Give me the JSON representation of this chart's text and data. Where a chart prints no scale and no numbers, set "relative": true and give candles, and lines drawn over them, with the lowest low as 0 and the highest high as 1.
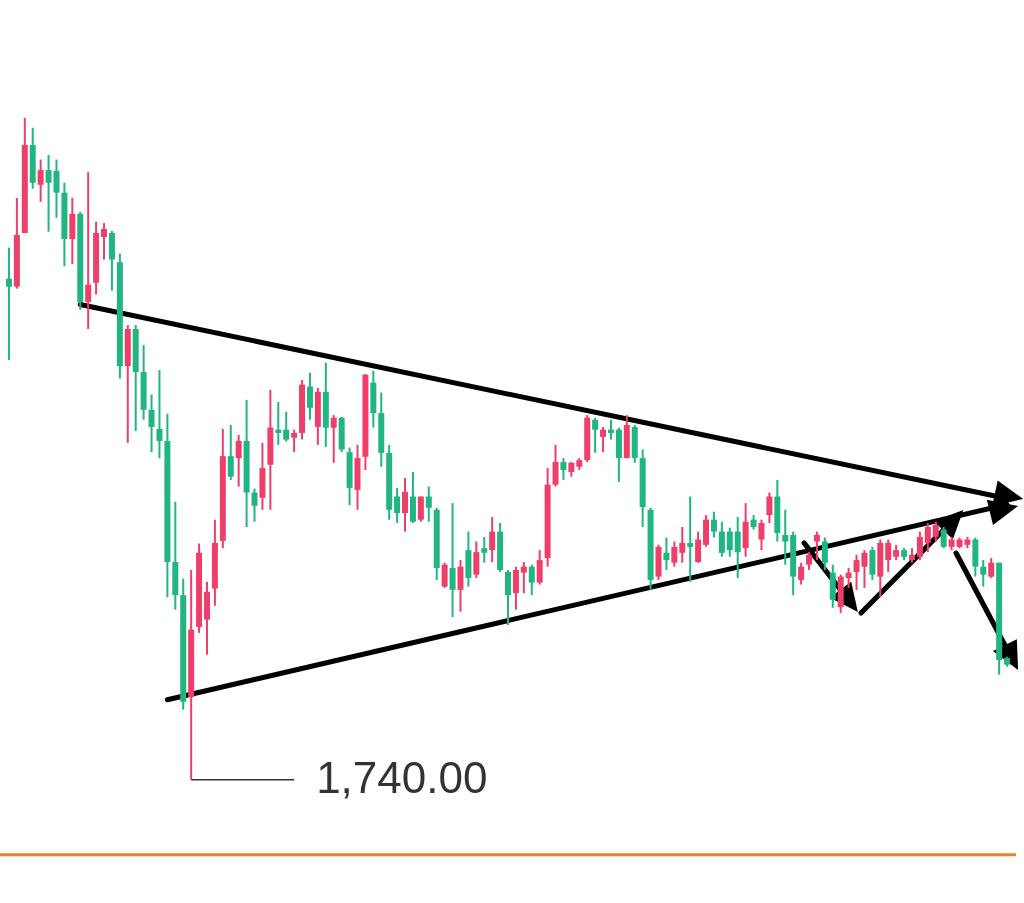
{
  "chart_data": {
    "type": "candlestick",
    "relative": true,
    "categories": [
      null,
      null,
      null,
      null,
      null,
      null,
      null,
      null,
      null,
      null,
      null,
      null,
      null,
      null,
      null,
      null,
      null,
      null,
      null,
      null,
      null,
      null,
      null,
      null,
      null,
      null,
      null,
      null,
      null,
      null,
      null,
      null,
      null,
      null,
      null,
      null,
      null,
      null,
      null,
      null,
      null,
      null,
      null,
      null,
      null,
      null,
      null,
      null,
      null,
      null,
      null,
      null,
      null,
      null,
      null,
      null,
      null,
      null,
      null,
      null,
      null,
      null,
      null,
      null,
      null,
      null,
      null,
      null,
      null,
      null,
      null,
      null,
      null,
      null,
      null,
      null,
      null,
      null,
      null,
      null,
      null,
      null,
      null,
      null,
      null,
      null,
      null,
      null,
      null,
      null,
      null,
      null,
      null,
      null,
      null,
      null,
      null,
      null,
      null,
      null,
      null,
      null,
      null,
      null,
      null,
      null,
      null,
      null,
      null,
      null,
      null,
      null,
      null,
      null,
      null,
      null,
      null,
      null,
      null,
      null,
      null,
      null,
      null,
      null,
      null,
      null,
      null
    ],
    "ohlc": [
      [
        0.757,
        0.804,
        0.634,
        0.745
      ],
      [
        0.745,
        0.879,
        0.742,
        0.823
      ],
      [
        0.826,
        1.0,
        0.826,
        0.959
      ],
      [
        0.959,
        0.985,
        0.893,
        0.902
      ],
      [
        0.899,
        0.937,
        0.873,
        0.921
      ],
      [
        0.921,
        0.944,
        0.828,
        0.902
      ],
      [
        0.92,
        0.937,
        0.849,
        0.887
      ],
      [
        0.887,
        0.902,
        0.776,
        0.817
      ],
      [
        0.817,
        0.879,
        0.779,
        0.855
      ],
      [
        0.855,
        0.858,
        0.71,
        0.722
      ],
      [
        0.722,
        0.918,
        0.681,
        0.748
      ],
      [
        0.751,
        0.843,
        0.733,
        0.826
      ],
      [
        0.82,
        0.841,
        0.786,
        0.832
      ],
      [
        0.826,
        0.829,
        0.739,
        0.786
      ],
      [
        0.782,
        0.795,
        0.606,
        0.625
      ],
      [
        0.625,
        0.687,
        0.509,
        0.681
      ],
      [
        0.681,
        0.687,
        0.527,
        0.616
      ],
      [
        0.616,
        0.657,
        0.544,
        0.559
      ],
      [
        0.559,
        0.582,
        0.495,
        0.533
      ],
      [
        0.53,
        0.619,
        0.486,
        0.512
      ],
      [
        0.512,
        0.553,
        0.276,
        0.329
      ],
      [
        0.329,
        0.42,
        0.257,
        0.279
      ],
      [
        0.279,
        0.304,
        0.106,
        0.118
      ],
      [
        0.125,
        0.317,
        0.0,
        0.227
      ],
      [
        0.231,
        0.357,
        0.222,
        0.343
      ],
      [
        0.242,
        0.299,
        0.189,
        0.284
      ],
      [
        0.289,
        0.393,
        0.263,
        0.358
      ],
      [
        0.361,
        0.53,
        0.35,
        0.489
      ],
      [
        0.489,
        0.536,
        0.453,
        0.458
      ],
      [
        0.486,
        0.521,
        0.443,
        0.512
      ],
      [
        0.512,
        0.574,
        0.382,
        0.434
      ],
      [
        0.434,
        0.44,
        0.39,
        0.414
      ],
      [
        0.426,
        0.509,
        0.408,
        0.471
      ],
      [
        0.476,
        0.589,
        0.408,
        0.532
      ],
      [
        0.529,
        0.571,
        0.506,
        0.524
      ],
      [
        0.529,
        0.556,
        0.511,
        0.514
      ],
      [
        0.517,
        0.529,
        0.495,
        0.524
      ],
      [
        0.524,
        0.604,
        0.514,
        0.597
      ],
      [
        0.594,
        0.615,
        0.544,
        0.562
      ],
      [
        0.533,
        0.592,
        0.506,
        0.586
      ],
      [
        0.586,
        0.63,
        0.503,
        0.532
      ],
      [
        0.532,
        0.551,
        0.479,
        0.547
      ],
      [
        0.547,
        0.548,
        0.495,
        0.499
      ],
      [
        0.495,
        0.502,
        0.415,
        0.441
      ],
      [
        0.438,
        0.506,
        0.408,
        0.486
      ],
      [
        0.488,
        0.613,
        0.468,
        0.612
      ],
      [
        0.6,
        0.618,
        0.532,
        0.554
      ],
      [
        0.554,
        0.585,
        0.473,
        0.494
      ],
      [
        0.494,
        0.506,
        0.393,
        0.408
      ],
      [
        0.428,
        0.441,
        0.388,
        0.403
      ],
      [
        0.403,
        0.456,
        0.375,
        0.435
      ],
      [
        0.428,
        0.465,
        0.388,
        0.39
      ],
      [
        0.393,
        0.428,
        0.39,
        0.428
      ],
      [
        0.428,
        0.443,
        0.39,
        0.411
      ],
      [
        0.408,
        0.411,
        0.302,
        0.32
      ],
      [
        0.292,
        0.328,
        0.29,
        0.325
      ],
      [
        0.32,
        0.418,
        0.246,
        0.287
      ],
      [
        0.287,
        0.332,
        0.254,
        0.322
      ],
      [
        0.347,
        0.375,
        0.292,
        0.305
      ],
      [
        0.31,
        0.36,
        0.305,
        0.344
      ],
      [
        0.35,
        0.367,
        0.328,
        0.343
      ],
      [
        0.347,
        0.397,
        0.329,
        0.375
      ],
      [
        0.375,
        0.388,
        0.314,
        0.317
      ],
      [
        0.314,
        0.317,
        0.234,
        0.279
      ],
      [
        0.282,
        0.322,
        0.257,
        0.317
      ],
      [
        0.313,
        0.329,
        0.282,
        0.322
      ],
      [
        0.322,
        0.325,
        0.279,
        0.298
      ],
      [
        0.298,
        0.347,
        0.295,
        0.332
      ],
      [
        0.335,
        0.471,
        0.322,
        0.446
      ],
      [
        0.446,
        0.506,
        0.443,
        0.48
      ],
      [
        0.48,
        0.486,
        0.453,
        0.468
      ],
      [
        0.465,
        0.48,
        0.458,
        0.479
      ],
      [
        0.473,
        0.486,
        0.468,
        0.483
      ],
      [
        0.483,
        0.551,
        0.48,
        0.547
      ],
      [
        0.544,
        0.547,
        0.494,
        0.529
      ],
      [
        0.518,
        0.533,
        0.495,
        0.529
      ],
      [
        0.529,
        0.544,
        0.514,
        0.524
      ],
      [
        0.529,
        0.532,
        0.45,
        0.486
      ],
      [
        0.486,
        0.551,
        0.486,
        0.536
      ],
      [
        0.533,
        0.536,
        0.479,
        0.486
      ],
      [
        0.486,
        0.499,
        0.382,
        0.412
      ],
      [
        0.408,
        0.411,
        0.287,
        0.302
      ],
      [
        0.307,
        0.355,
        0.302,
        0.352
      ],
      [
        0.343,
        0.366,
        0.317,
        0.332
      ],
      [
        0.328,
        0.36,
        0.322,
        0.352
      ],
      [
        0.343,
        0.382,
        0.328,
        0.358
      ],
      [
        0.358,
        0.428,
        0.299,
        0.352
      ],
      [
        0.329,
        0.375,
        0.328,
        0.363
      ],
      [
        0.355,
        0.4,
        0.352,
        0.393
      ],
      [
        0.393,
        0.405,
        0.366,
        0.375
      ],
      [
        0.375,
        0.39,
        0.337,
        0.343
      ],
      [
        0.375,
        0.381,
        0.337,
        0.347
      ],
      [
        0.375,
        0.397,
        0.305,
        0.344
      ],
      [
        0.35,
        0.418,
        0.337,
        0.39
      ],
      [
        0.393,
        0.4,
        0.378,
        0.382
      ],
      [
        0.363,
        0.393,
        0.347,
        0.388
      ],
      [
        0.4,
        0.434,
        0.388,
        0.428
      ],
      [
        0.428,
        0.453,
        0.36,
        0.373
      ],
      [
        0.37,
        0.408,
        0.325,
        0.36
      ],
      [
        0.37,
        0.375,
        0.279,
        0.307
      ],
      [
        0.302,
        0.328,
        0.295,
        0.322
      ],
      [
        0.325,
        0.344,
        0.317,
        0.34
      ],
      [
        0.36,
        0.375,
        0.332,
        0.37
      ],
      [
        0.36,
        0.366,
        0.317,
        0.328
      ],
      [
        0.313,
        0.325,
        0.26,
        0.272
      ],
      [
        0.261,
        0.31,
        0.252,
        0.307
      ],
      [
        0.305,
        0.32,
        0.29,
        0.313
      ],
      [
        0.314,
        0.34,
        0.287,
        0.332
      ],
      [
        0.322,
        0.347,
        0.29,
        0.343
      ],
      [
        0.347,
        0.352,
        0.302,
        0.31
      ],
      [
        0.307,
        0.363,
        0.276,
        0.358
      ],
      [
        0.332,
        0.363,
        0.314,
        0.358
      ],
      [
        0.337,
        0.355,
        0.332,
        0.347
      ],
      [
        0.347,
        0.35,
        0.332,
        0.337
      ],
      [
        0.332,
        0.35,
        0.328,
        0.34
      ],
      [
        0.337,
        0.375,
        0.332,
        0.367
      ],
      [
        0.358,
        0.388,
        0.344,
        0.382
      ],
      [
        0.367,
        0.39,
        0.36,
        0.385
      ],
      [
        0.378,
        0.382,
        0.35,
        0.352
      ],
      [
        0.352,
        0.367,
        0.347,
        0.363
      ],
      [
        0.352,
        0.366,
        0.35,
        0.363
      ],
      [
        0.355,
        0.367,
        0.35,
        0.363
      ],
      [
        0.363,
        0.366,
        0.307,
        0.322
      ],
      [
        0.322,
        0.332,
        0.292,
        0.31
      ],
      [
        0.307,
        0.335,
        0.305,
        0.328
      ],
      [
        0.328,
        0.328,
        0.159,
        0.181
      ],
      [
        0.184,
        0.186,
        0.171,
        0.174
      ]
    ],
    "colors": [
      "#21b582",
      "#ee3f6b",
      "#ee3f6b",
      "#21b582",
      "#ee3f6b",
      "#21b582",
      "#21b582",
      "#21b582",
      "#ee3f6b",
      "#21b582",
      "#ee3f6b",
      "#ee3f6b",
      "#ee3f6b",
      "#21b582",
      "#21b582",
      "#ee3f6b",
      "#21b582",
      "#21b582",
      "#21b582",
      "#21b582",
      "#21b582",
      "#21b582",
      "#21b582",
      "#ee3f6b",
      "#ee3f6b",
      "#ee3f6b",
      "#ee3f6b",
      "#ee3f6b",
      "#21b582",
      "#ee3f6b",
      "#21b582",
      "#21b582",
      "#ee3f6b",
      "#ee3f6b",
      "#21b582",
      "#21b582",
      "#ee3f6b",
      "#ee3f6b",
      "#21b582",
      "#ee3f6b",
      "#21b582",
      "#ee3f6b",
      "#21b582",
      "#21b582",
      "#ee3f6b",
      "#ee3f6b",
      "#21b582",
      "#21b582",
      "#21b582",
      "#21b582",
      "#ee3f6b",
      "#21b582",
      "#ee3f6b",
      "#21b582",
      "#21b582",
      "#ee3f6b",
      "#21b582",
      "#ee3f6b",
      "#21b582",
      "#ee3f6b",
      "#21b582",
      "#ee3f6b",
      "#21b582",
      "#21b582",
      "#ee3f6b",
      "#ee3f6b",
      "#21b582",
      "#ee3f6b",
      "#ee3f6b",
      "#ee3f6b",
      "#21b582",
      "#ee3f6b",
      "#ee3f6b",
      "#ee3f6b",
      "#21b582",
      "#ee3f6b",
      "#21b582",
      "#21b582",
      "#ee3f6b",
      "#21b582",
      "#21b582",
      "#21b582",
      "#ee3f6b",
      "#21b582",
      "#ee3f6b",
      "#ee3f6b",
      "#21b582",
      "#ee3f6b",
      "#ee3f6b",
      "#21b582",
      "#21b582",
      "#21b582",
      "#21b582",
      "#ee3f6b",
      "#21b582",
      "#ee3f6b",
      "#ee3f6b",
      "#21b582",
      "#21b582",
      "#21b582",
      "#ee3f6b",
      "#ee3f6b",
      "#ee3f6b",
      "#21b582",
      "#21b582",
      "#ee3f6b",
      "#ee3f6b",
      "#ee3f6b",
      "#ee3f6b",
      "#21b582",
      "#ee3f6b",
      "#ee3f6b",
      "#ee3f6b",
      "#21b582",
      "#ee3f6b",
      "#ee3f6b",
      "#ee3f6b",
      "#ee3f6b",
      "#21b582",
      "#ee3f6b",
      "#ee3f6b",
      "#ee3f6b",
      "#21b582",
      "#21b582",
      "#ee3f6b",
      "#21b582",
      "#21b582"
    ],
    "series": [
      {
        "type": "line",
        "color": "#000000",
        "values": [
          null,
          null,
          null,
          null,
          null,
          null,
          null,
          null,
          null,
          0.718,
          null,
          null,
          null,
          null,
          null,
          null,
          null,
          null,
          null,
          null,
          null,
          null,
          null,
          null,
          null,
          null,
          null,
          null,
          null,
          null,
          null,
          null,
          null,
          null,
          null,
          null,
          null,
          null,
          null,
          null,
          null,
          null,
          null,
          null,
          null,
          null,
          null,
          null,
          null,
          null,
          null,
          null,
          null,
          null,
          null,
          null,
          null,
          null,
          null,
          null,
          null,
          null,
          null,
          null,
          null,
          null,
          null,
          null,
          null,
          null,
          null,
          null,
          null,
          null,
          null,
          null,
          null,
          null,
          null,
          null,
          null,
          null,
          null,
          null,
          null,
          null,
          null,
          null,
          null,
          null,
          null,
          null,
          null,
          null,
          null,
          null,
          null,
          null,
          null,
          null,
          null,
          null,
          null,
          null,
          null,
          null,
          null,
          null,
          null,
          null,
          null,
          null,
          null,
          null,
          null,
          null,
          null,
          null,
          null,
          null,
          null,
          null,
          null,
          null,
          null,
          null,
          0.425
        ]
      },
      {
        "type": "line",
        "color": "#000000",
        "values": [
          null,
          null,
          null,
          null,
          null,
          null,
          null,
          null,
          null,
          null,
          null,
          null,
          null,
          null,
          null,
          null,
          null,
          null,
          null,
          null,
          0.121,
          null,
          null,
          null,
          null,
          null,
          null,
          null,
          null,
          null,
          null,
          null,
          null,
          null,
          null,
          null,
          null,
          null,
          null,
          null,
          null,
          null,
          null,
          null,
          null,
          null,
          null,
          null,
          null,
          null,
          null,
          null,
          null,
          null,
          null,
          null,
          null,
          null,
          null,
          null,
          null,
          null,
          null,
          null,
          null,
          null,
          null,
          null,
          null,
          null,
          null,
          null,
          null,
          null,
          null,
          null,
          null,
          null,
          null,
          null,
          null,
          null,
          null,
          null,
          null,
          null,
          null,
          null,
          null,
          null,
          null,
          null,
          null,
          null,
          null,
          null,
          null,
          null,
          null,
          null,
          null,
          null,
          null,
          null,
          null,
          null,
          null,
          null,
          null,
          null,
          null,
          null,
          null,
          null,
          null,
          null,
          null,
          null,
          null,
          null,
          null,
          null,
          null,
          null,
          null,
          null,
          0.416
        ]
      }
    ],
    "ref_lines": [
      {
        "axis": "y",
        "value": -0.113,
        "color": "#f07f2a"
      }
    ],
    "annotations": [
      "1,740.00"
    ]
  }
}
